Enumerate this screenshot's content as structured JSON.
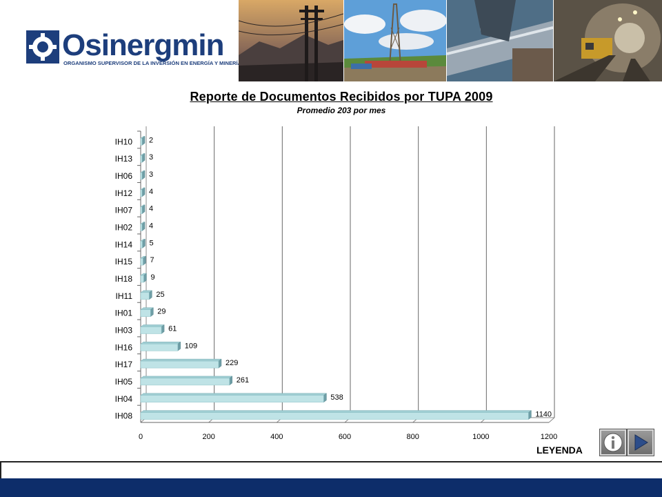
{
  "header": {
    "logo_text": "Osinergmin",
    "logo_tagline": "ORGANISMO SUPERVISOR DE LA INVERSIÓN EN ENERGÍA Y MINERÍA"
  },
  "legend_label": "LEYENDA",
  "colors": {
    "bar_front": "#bfe3e6",
    "bar_top": "#9fcdd2",
    "bar_side": "#6f9ea6",
    "brand_blue": "#1d3e7c",
    "footer_blue": "#0d2d6a"
  },
  "chart_data": {
    "type": "bar",
    "orientation": "horizontal",
    "title": "Reporte de Documentos Recibidos por TUPA 2009",
    "subtitle": "Promedio 203 por mes",
    "categories": [
      "IH10",
      "IH13",
      "IH06",
      "IH12",
      "IH07",
      "IH02",
      "IH14",
      "IH15",
      "IH18",
      "IH11",
      "IH01",
      "IH03",
      "IH16",
      "IH17",
      "IH05",
      "IH04",
      "IH08"
    ],
    "values": [
      2,
      3,
      3,
      4,
      4,
      4,
      5,
      7,
      9,
      25,
      29,
      61,
      109,
      229,
      261,
      538,
      1140
    ],
    "xlim": [
      0,
      1200
    ],
    "xticks": [
      0,
      200,
      400,
      600,
      800,
      1000,
      1200
    ],
    "grid": "vertical",
    "legend": "none"
  }
}
